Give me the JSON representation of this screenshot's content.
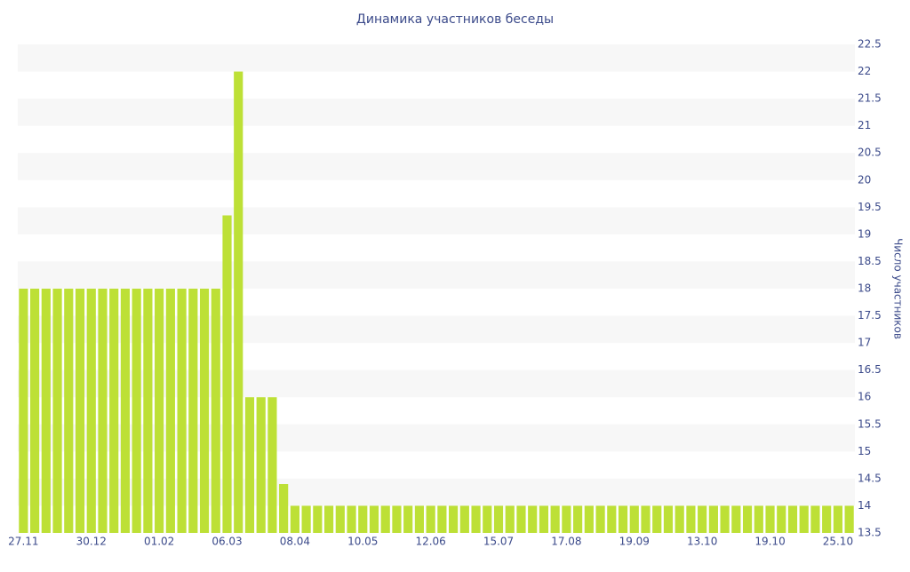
{
  "chart_data": {
    "type": "bar",
    "title": "Динамика участников беседы",
    "y_axis_label": "Число участников",
    "categories": [
      "27.11",
      null,
      null,
      null,
      null,
      null,
      "30.12",
      null,
      null,
      null,
      null,
      null,
      "01.02",
      null,
      null,
      null,
      null,
      null,
      "06.03",
      null,
      null,
      null,
      null,
      null,
      "08.04",
      null,
      null,
      null,
      null,
      null,
      "10.05",
      null,
      null,
      null,
      null,
      null,
      "12.06",
      null,
      null,
      null,
      null,
      null,
      "15.07",
      null,
      null,
      null,
      null,
      null,
      "17.08",
      null,
      null,
      null,
      null,
      null,
      "19.09",
      null,
      null,
      null,
      null,
      null,
      "13.10",
      null,
      null,
      null,
      null,
      null,
      "19.10",
      null,
      null,
      null,
      null,
      null,
      "25.10",
      null
    ],
    "values": [
      18,
      18,
      18,
      18,
      18,
      18,
      18,
      18,
      18,
      18,
      18,
      18,
      18,
      18,
      18,
      18,
      18,
      18,
      19.35,
      22,
      16,
      16,
      16,
      14.4,
      14,
      14,
      14,
      14,
      14,
      14,
      14,
      14,
      14,
      14,
      14,
      14,
      14,
      14,
      14,
      14,
      14,
      14,
      14,
      14,
      14,
      14,
      14,
      14,
      14,
      14,
      14,
      14,
      14,
      14,
      14,
      14,
      14,
      14,
      14,
      14,
      14,
      14,
      14,
      14,
      14,
      14,
      14,
      14,
      14,
      14,
      14,
      14,
      14,
      14
    ],
    "color": "#bde036",
    "ylim": [
      13.5,
      22.5
    ],
    "yticks": [
      13.5,
      14,
      14.5,
      15,
      15.5,
      16,
      16.5,
      17,
      17.5,
      18,
      18.5,
      19,
      19.5,
      20,
      20.5,
      21,
      21.5,
      22,
      22.5
    ],
    "y_axis_side": "right",
    "grid": "bands"
  }
}
